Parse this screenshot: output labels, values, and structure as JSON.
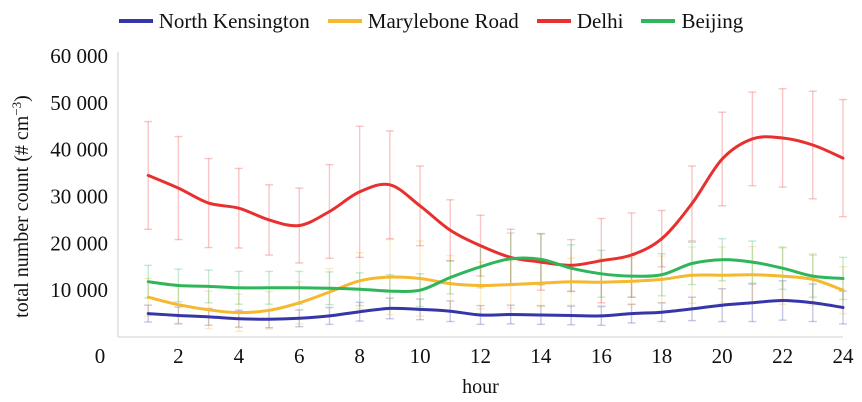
{
  "chart_data": {
    "type": "line",
    "xlabel": "hour",
    "ylabel": "total number count (# cm",
    "ylabel_exp": "−3",
    "ylabel_close": ")",
    "xlim": [
      0,
      24
    ],
    "ylim": [
      0,
      60000
    ],
    "xticks": [
      0,
      2,
      4,
      6,
      8,
      10,
      12,
      14,
      16,
      18,
      20,
      22,
      24
    ],
    "xtick_labels": [
      "0",
      "2",
      "4",
      "6",
      "8",
      "10",
      "12",
      "14",
      "16",
      "18",
      "20",
      "22",
      "24"
    ],
    "yticks": [
      10000,
      20000,
      30000,
      40000,
      50000,
      60000
    ],
    "ytick_labels": [
      "10 000",
      "20 000",
      "30 000",
      "40 000",
      "50 000",
      "60 000"
    ],
    "legend_position": "top",
    "grid": false,
    "x": [
      1,
      2,
      3,
      4,
      5,
      6,
      7,
      8,
      9,
      10,
      11,
      12,
      13,
      14,
      15,
      16,
      17,
      18,
      19,
      20,
      21,
      22,
      23,
      24
    ],
    "series": [
      {
        "name": "North Kensington",
        "color": "#3636a8",
        "values": [
          5000,
          4600,
          4300,
          3900,
          3800,
          4000,
          4500,
          5400,
          6100,
          5900,
          5500,
          4700,
          4800,
          4700,
          4600,
          4500,
          5000,
          5300,
          6000,
          6800,
          7300,
          7800,
          7300,
          6300
        ],
        "err": [
          1800,
          1800,
          1800,
          1800,
          1800,
          1800,
          1800,
          2000,
          2200,
          2200,
          2200,
          2000,
          2000,
          2000,
          2000,
          2000,
          2000,
          2000,
          2500,
          3500,
          4000,
          4200,
          4000,
          3500
        ]
      },
      {
        "name": "Marylebone Road",
        "color": "#f5b82e",
        "values": [
          8500,
          6900,
          5800,
          5200,
          5700,
          7300,
          9600,
          12000,
          12800,
          12500,
          11400,
          11000,
          11200,
          11500,
          11800,
          11700,
          11900,
          12300,
          13200,
          13200,
          13300,
          13000,
          12300,
          10000
        ],
        "err": [
          4000,
          4000,
          4000,
          4000,
          4000,
          4500,
          5000,
          6000,
          8000,
          8000,
          6000,
          5000,
          5000,
          5000,
          5000,
          5000,
          5000,
          5000,
          6000,
          6000,
          6000,
          6000,
          5500,
          5000
        ]
      },
      {
        "name": "Delhi",
        "color": "#e8302e",
        "values": [
          34500,
          31800,
          28600,
          27500,
          25000,
          23800,
          26800,
          31000,
          32500,
          28000,
          22800,
          19500,
          17000,
          16000,
          15300,
          16300,
          17500,
          21000,
          28500,
          38000,
          42300,
          42500,
          41000,
          38200
        ],
        "err": [
          11500,
          11000,
          9500,
          8500,
          7500,
          8000,
          10000,
          14000,
          11500,
          8500,
          6500,
          6500,
          6000,
          6000,
          5500,
          9000,
          9000,
          6000,
          8000,
          10000,
          10000,
          10500,
          11500,
          12500
        ]
      },
      {
        "name": "Beijing",
        "color": "#2fb55a",
        "values": [
          11800,
          11000,
          10800,
          10500,
          10500,
          10500,
          10400,
          10200,
          9800,
          10000,
          12700,
          15000,
          16700,
          16600,
          14700,
          13500,
          13000,
          13300,
          15700,
          16500,
          16000,
          14700,
          13000,
          12500
        ],
        "err": [
          3500,
          3500,
          3500,
          3500,
          3500,
          3500,
          3500,
          3500,
          3500,
          3500,
          3500,
          4500,
          5500,
          5500,
          5000,
          5000,
          4500,
          4500,
          4500,
          4500,
          4500,
          4500,
          4500,
          4500
        ]
      }
    ]
  }
}
